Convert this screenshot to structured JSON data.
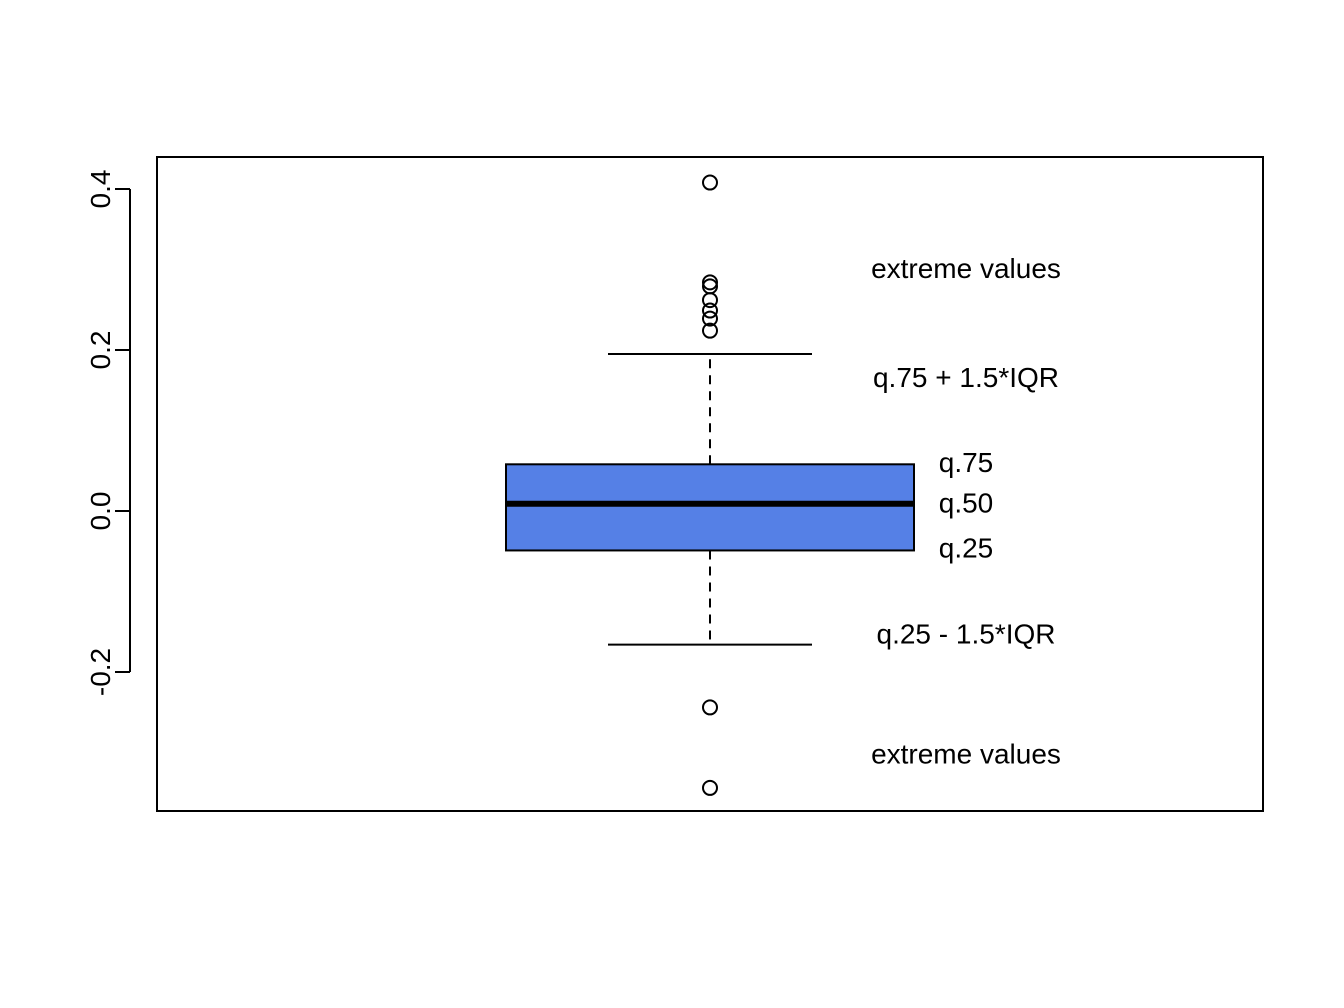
{
  "chart_data": {
    "type": "box",
    "title": "",
    "xlabel": "",
    "ylabel": "",
    "ylim": [
      -0.36,
      0.43
    ],
    "yticks": [
      -0.2,
      0.0,
      0.2,
      0.4
    ],
    "ytick_labels": [
      "-0.2",
      "0.0",
      "0.2",
      "0.4"
    ],
    "box_color": "#5580E6",
    "stats": {
      "whisker_high": 0.195,
      "q75": 0.058,
      "median": 0.009,
      "q25": -0.049,
      "whisker_low": -0.166
    },
    "outliers": [
      0.408,
      0.284,
      0.279,
      0.262,
      0.249,
      0.239,
      0.224,
      -0.244,
      -0.344
    ],
    "annotations": [
      {
        "text": "extreme values",
        "y": 0.301
      },
      {
        "text": "q.75 + 1.5*IQR",
        "y": 0.166
      },
      {
        "text": "q.75",
        "y": 0.06
      },
      {
        "text": "q.50",
        "y": 0.01
      },
      {
        "text": "q.25",
        "y": -0.046
      },
      {
        "text": "q.25 - 1.5*IQR",
        "y": -0.153
      },
      {
        "text": "extreme values",
        "y": -0.302
      }
    ]
  }
}
